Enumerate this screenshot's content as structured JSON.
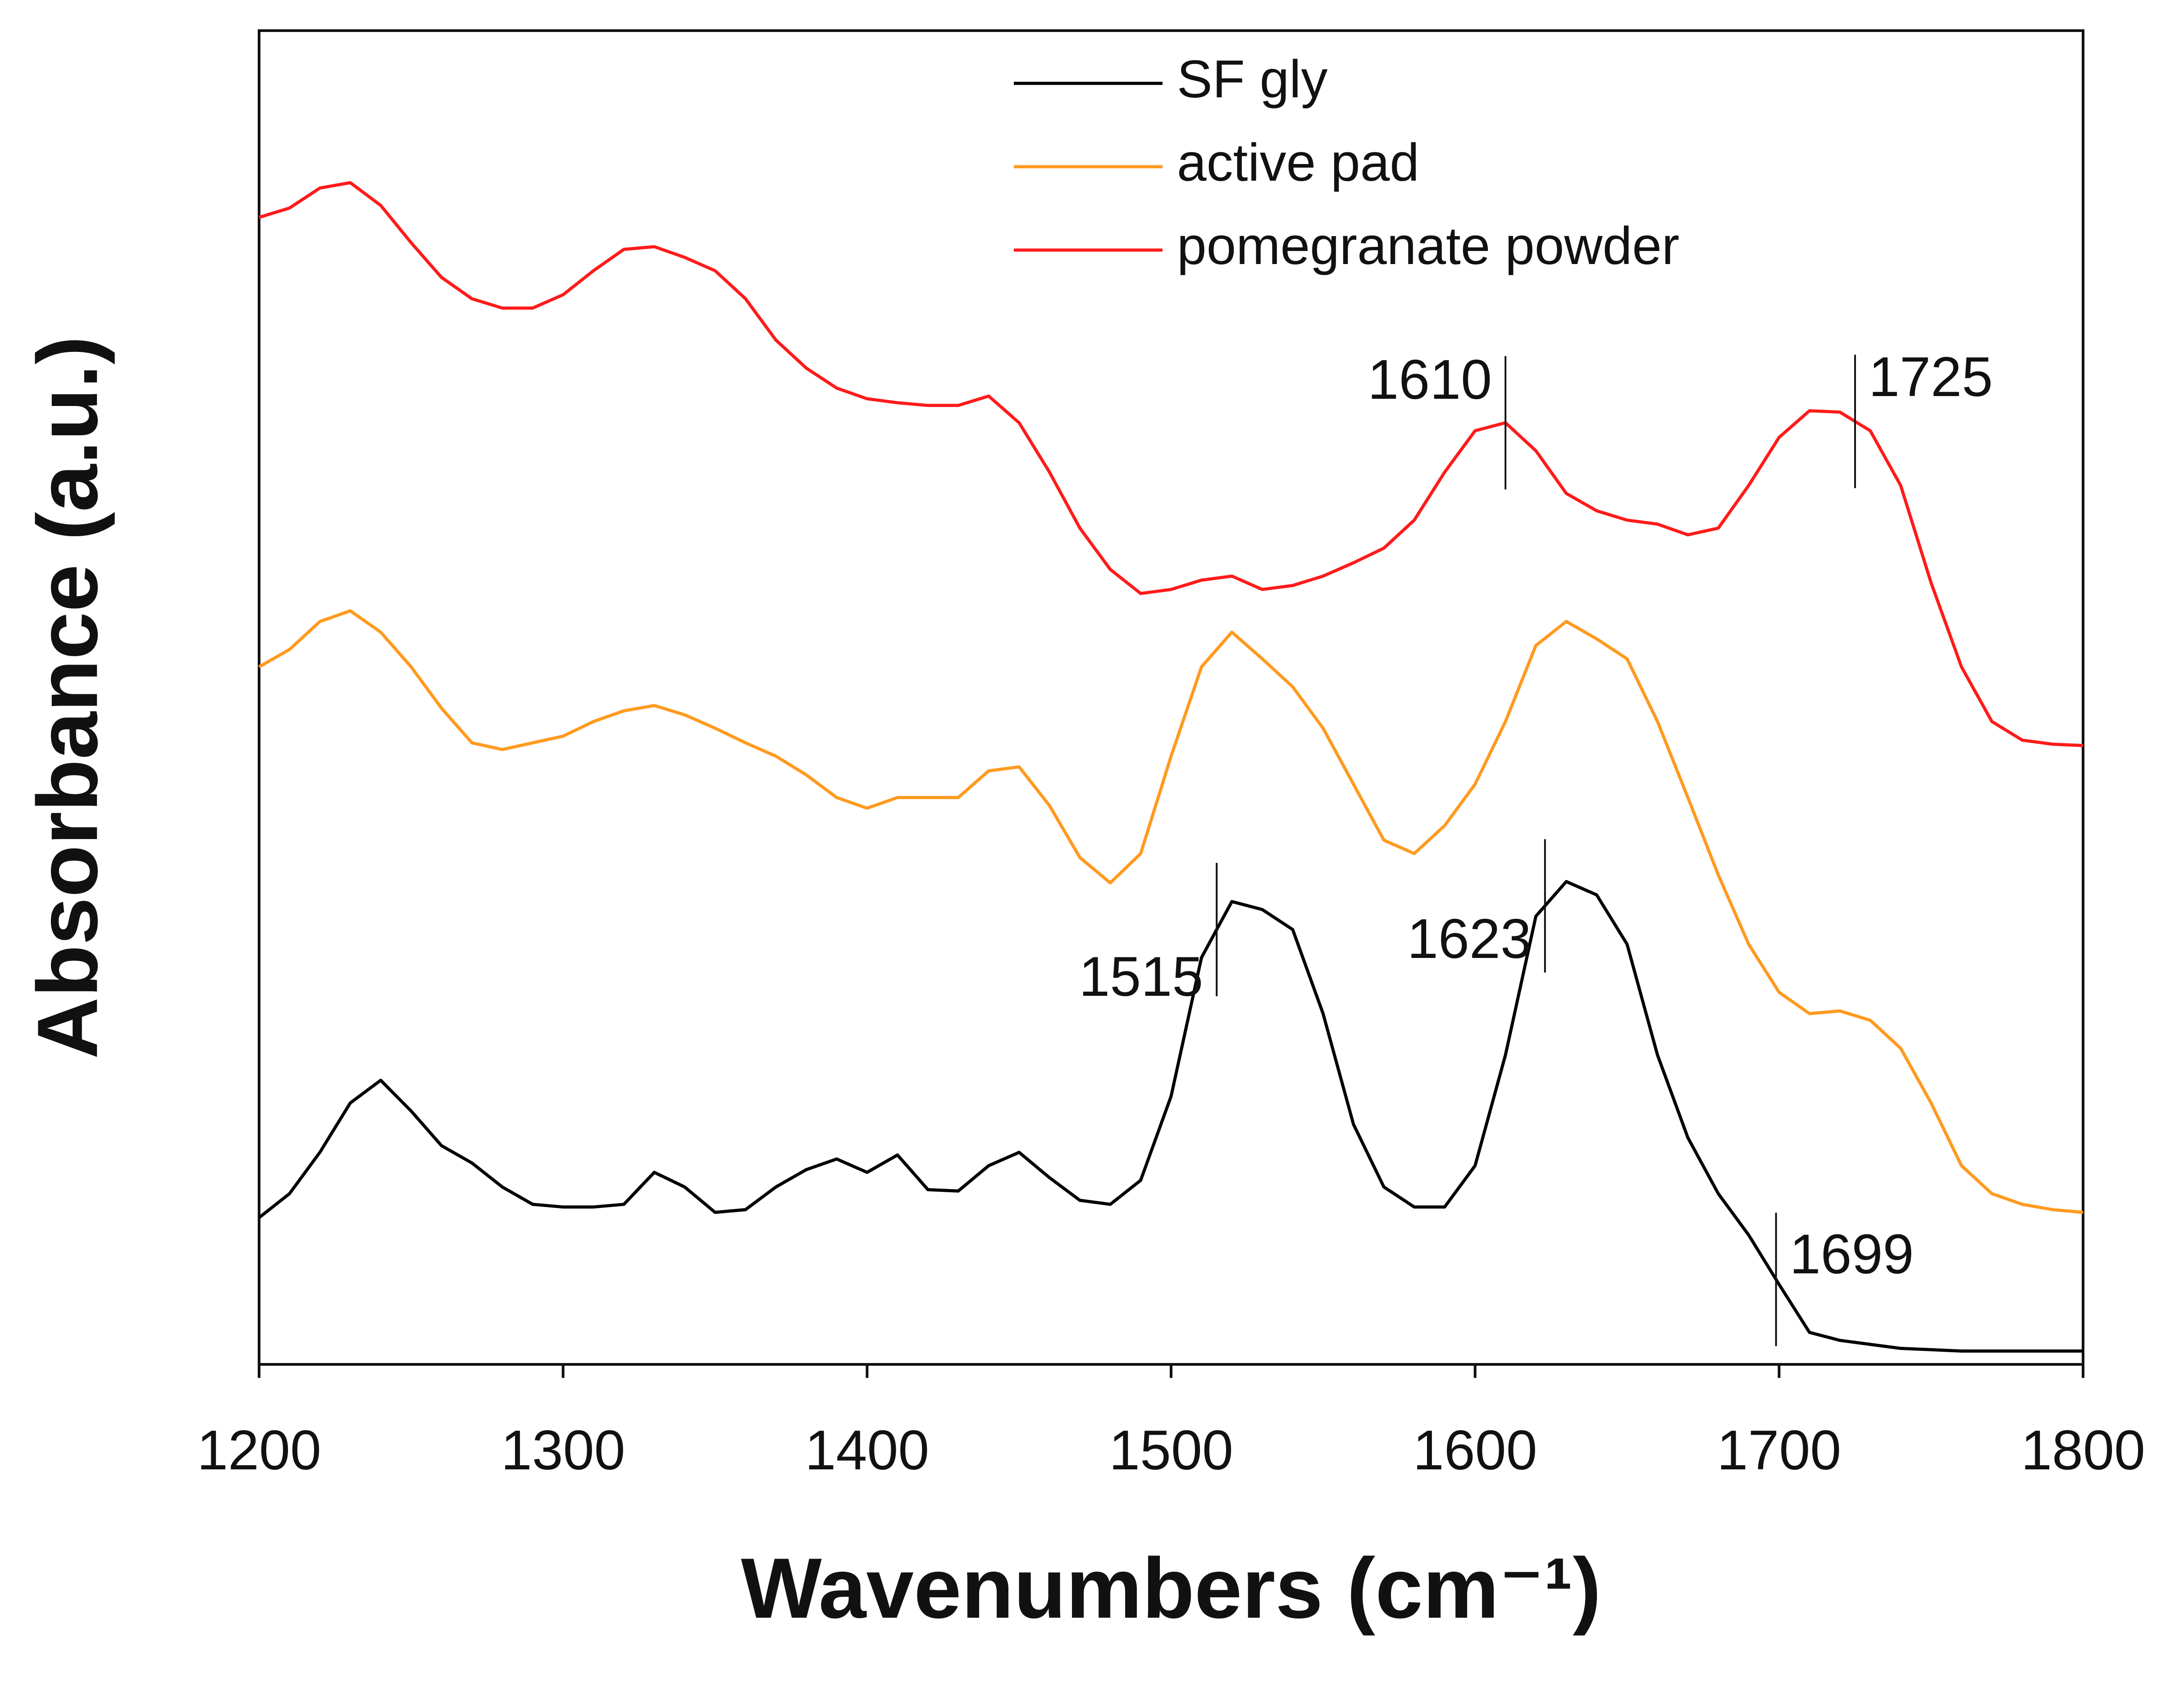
{
  "chart_data": {
    "type": "line",
    "x_label": "Wavenumbers (cm⁻¹)",
    "y_label": "Absorbance (a.u.)",
    "x": [
      1200,
      1210,
      1220,
      1230,
      1240,
      1250,
      1260,
      1270,
      1280,
      1290,
      1300,
      1310,
      1320,
      1330,
      1340,
      1350,
      1360,
      1370,
      1380,
      1390,
      1400,
      1410,
      1420,
      1430,
      1440,
      1450,
      1460,
      1470,
      1480,
      1490,
      1500,
      1510,
      1520,
      1530,
      1540,
      1550,
      1560,
      1570,
      1580,
      1590,
      1600,
      1610,
      1620,
      1630,
      1640,
      1650,
      1660,
      1670,
      1680,
      1690,
      1700,
      1710,
      1720,
      1730,
      1740,
      1750,
      1760,
      1770,
      1780,
      1790,
      1800
    ],
    "series": [
      {
        "name": "SF gly",
        "color": "#000000",
        "values": [
          11.0,
          12.8,
          15.9,
          19.6,
          21.3,
          19.0,
          16.4,
          15.1,
          13.3,
          12.0,
          11.8,
          11.8,
          12.0,
          14.4,
          13.3,
          11.4,
          11.6,
          13.3,
          14.6,
          15.4,
          14.4,
          15.7,
          13.1,
          13.0,
          14.9,
          15.9,
          14.0,
          12.3,
          12.0,
          13.8,
          20.1,
          30.5,
          34.7,
          34.1,
          32.6,
          26.3,
          18.0,
          13.3,
          11.8,
          11.8,
          14.9,
          23.2,
          33.6,
          36.2,
          35.2,
          31.5,
          23.2,
          17.0,
          12.8,
          9.7,
          6.0,
          2.4,
          1.8,
          1.5,
          1.2,
          1.1,
          1.0,
          1.0,
          1.0,
          1.0,
          1.0
        ]
      },
      {
        "name": "active pad",
        "color": "#ff9a1f",
        "values": [
          52.3,
          53.6,
          55.7,
          56.5,
          54.9,
          52.3,
          49.2,
          46.6,
          46.1,
          46.6,
          47.1,
          48.2,
          49.0,
          49.4,
          48.7,
          47.7,
          46.6,
          45.6,
          44.2,
          42.5,
          41.7,
          42.5,
          42.5,
          42.5,
          44.5,
          44.8,
          41.9,
          38.0,
          36.1,
          38.3,
          45.6,
          52.3,
          54.9,
          52.9,
          50.8,
          47.7,
          43.5,
          39.3,
          38.3,
          40.4,
          43.5,
          48.2,
          53.9,
          55.7,
          54.4,
          52.9,
          48.2,
          42.5,
          36.7,
          31.5,
          27.9,
          26.3,
          26.5,
          25.8,
          23.7,
          19.6,
          14.9,
          12.8,
          12.0,
          11.6,
          11.4
        ]
      },
      {
        "name": "pomegranate powder",
        "color": "#ff1a1a",
        "values": [
          86.0,
          86.7,
          88.2,
          88.6,
          86.9,
          84.1,
          81.5,
          79.9,
          79.2,
          79.2,
          80.2,
          82.0,
          83.6,
          83.8,
          83.0,
          82.0,
          79.9,
          76.8,
          74.7,
          73.2,
          72.4,
          72.1,
          71.9,
          71.9,
          72.6,
          70.6,
          66.9,
          62.7,
          59.6,
          57.8,
          58.1,
          58.8,
          59.1,
          58.1,
          58.4,
          59.1,
          60.1,
          61.2,
          63.3,
          66.9,
          70.0,
          70.6,
          68.5,
          65.3,
          64.0,
          63.3,
          63.0,
          62.2,
          62.7,
          65.9,
          69.5,
          71.5,
          71.4,
          70.0,
          65.9,
          58.6,
          52.3,
          48.2,
          46.8,
          46.5,
          46.4
        ]
      }
    ],
    "xlim": [
      1200,
      1800
    ],
    "xticks": [
      1200,
      1300,
      1400,
      1500,
      1600,
      1700,
      1800
    ],
    "ylim": [
      0,
      100
    ],
    "annotations": [
      1610,
      1725,
      1515,
      1623,
      1699
    ],
    "legend": "upper center"
  }
}
